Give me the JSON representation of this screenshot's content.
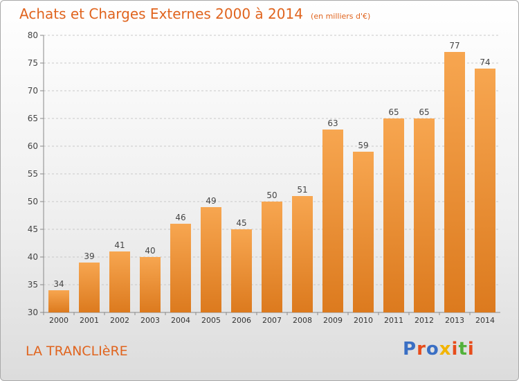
{
  "header": {
    "title": "Achats et Charges Externes 2000 à 2014",
    "subtitle": "(en milliers d'€)"
  },
  "footer": {
    "place": "LA TRANCLIèRE",
    "logo_text": "Proxiti"
  },
  "colors": {
    "bar_light": "#f7a650",
    "bar_dark": "#dc7a1e",
    "title": "#e0641e",
    "logo": [
      "#3a6fc4",
      "#e74c1b",
      "#3a6fc4",
      "#f2b400",
      "#e74c1b",
      "#52b13a",
      "#e74c1b"
    ]
  },
  "chart_data": {
    "type": "bar",
    "categories": [
      "2000",
      "2001",
      "2002",
      "2003",
      "2004",
      "2005",
      "2006",
      "2007",
      "2008",
      "2009",
      "2010",
      "2011",
      "2012",
      "2013",
      "2014"
    ],
    "values": [
      34,
      39,
      41,
      40,
      46,
      49,
      45,
      50,
      51,
      63,
      59,
      65,
      65,
      77,
      74
    ],
    "ylim": [
      30,
      80
    ],
    "yticks": [
      30,
      35,
      40,
      45,
      50,
      55,
      60,
      65,
      70,
      75,
      80
    ],
    "grid": "horizontal dashed",
    "data_labels": true
  }
}
